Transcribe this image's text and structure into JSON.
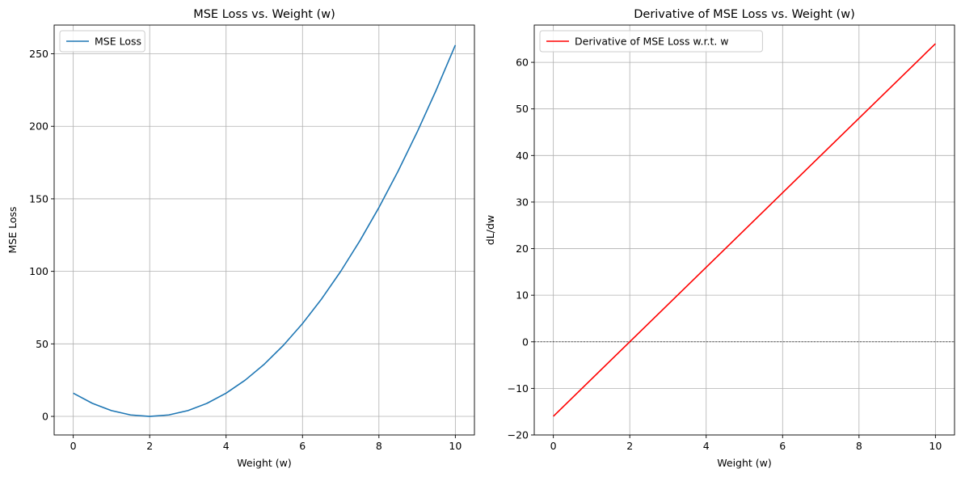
{
  "chart_data": [
    {
      "type": "line",
      "title": "MSE Loss vs. Weight (w)",
      "xlabel": "Weight (w)",
      "ylabel": "MSE Loss",
      "xlim": [
        -0.5,
        10.5
      ],
      "ylim": [
        -12.8,
        269.8
      ],
      "xticks": [
        0,
        2,
        4,
        6,
        8,
        10
      ],
      "yticks": [
        0,
        50,
        100,
        150,
        200,
        250
      ],
      "grid": true,
      "legend": "top-left",
      "series": [
        {
          "name": "MSE Loss",
          "color": "#1f77b4",
          "x": [
            0,
            0.5,
            1,
            1.5,
            2,
            2.5,
            3,
            3.5,
            4,
            4.5,
            5,
            5.5,
            6,
            6.5,
            7,
            7.5,
            8,
            8.5,
            9,
            9.5,
            10
          ],
          "y": [
            16,
            9,
            4,
            1,
            0,
            1,
            4,
            9,
            16,
            25,
            36,
            49,
            64,
            81,
            100,
            121,
            144,
            169,
            196,
            225,
            256
          ]
        }
      ]
    },
    {
      "type": "line",
      "title": "Derivative of MSE Loss vs. Weight (w)",
      "xlabel": "Weight (w)",
      "ylabel": "dL/dw",
      "xlim": [
        -0.5,
        10.5
      ],
      "ylim": [
        -20,
        68
      ],
      "xticks": [
        0,
        2,
        4,
        6,
        8,
        10
      ],
      "yticks": [
        -20,
        -10,
        0,
        10,
        20,
        30,
        40,
        50,
        60
      ],
      "ytick_labels": [
        "−20",
        "−10",
        "0",
        "10",
        "20",
        "30",
        "40",
        "50",
        "60"
      ],
      "grid": true,
      "legend": "top-left",
      "reference_line": {
        "y": 0,
        "style": "dashed",
        "color": "#000000"
      },
      "series": [
        {
          "name": "Derivative of MSE Loss w.r.t. w",
          "color": "#ff0000",
          "x": [
            0,
            10
          ],
          "y": [
            -16,
            64
          ]
        }
      ]
    }
  ]
}
